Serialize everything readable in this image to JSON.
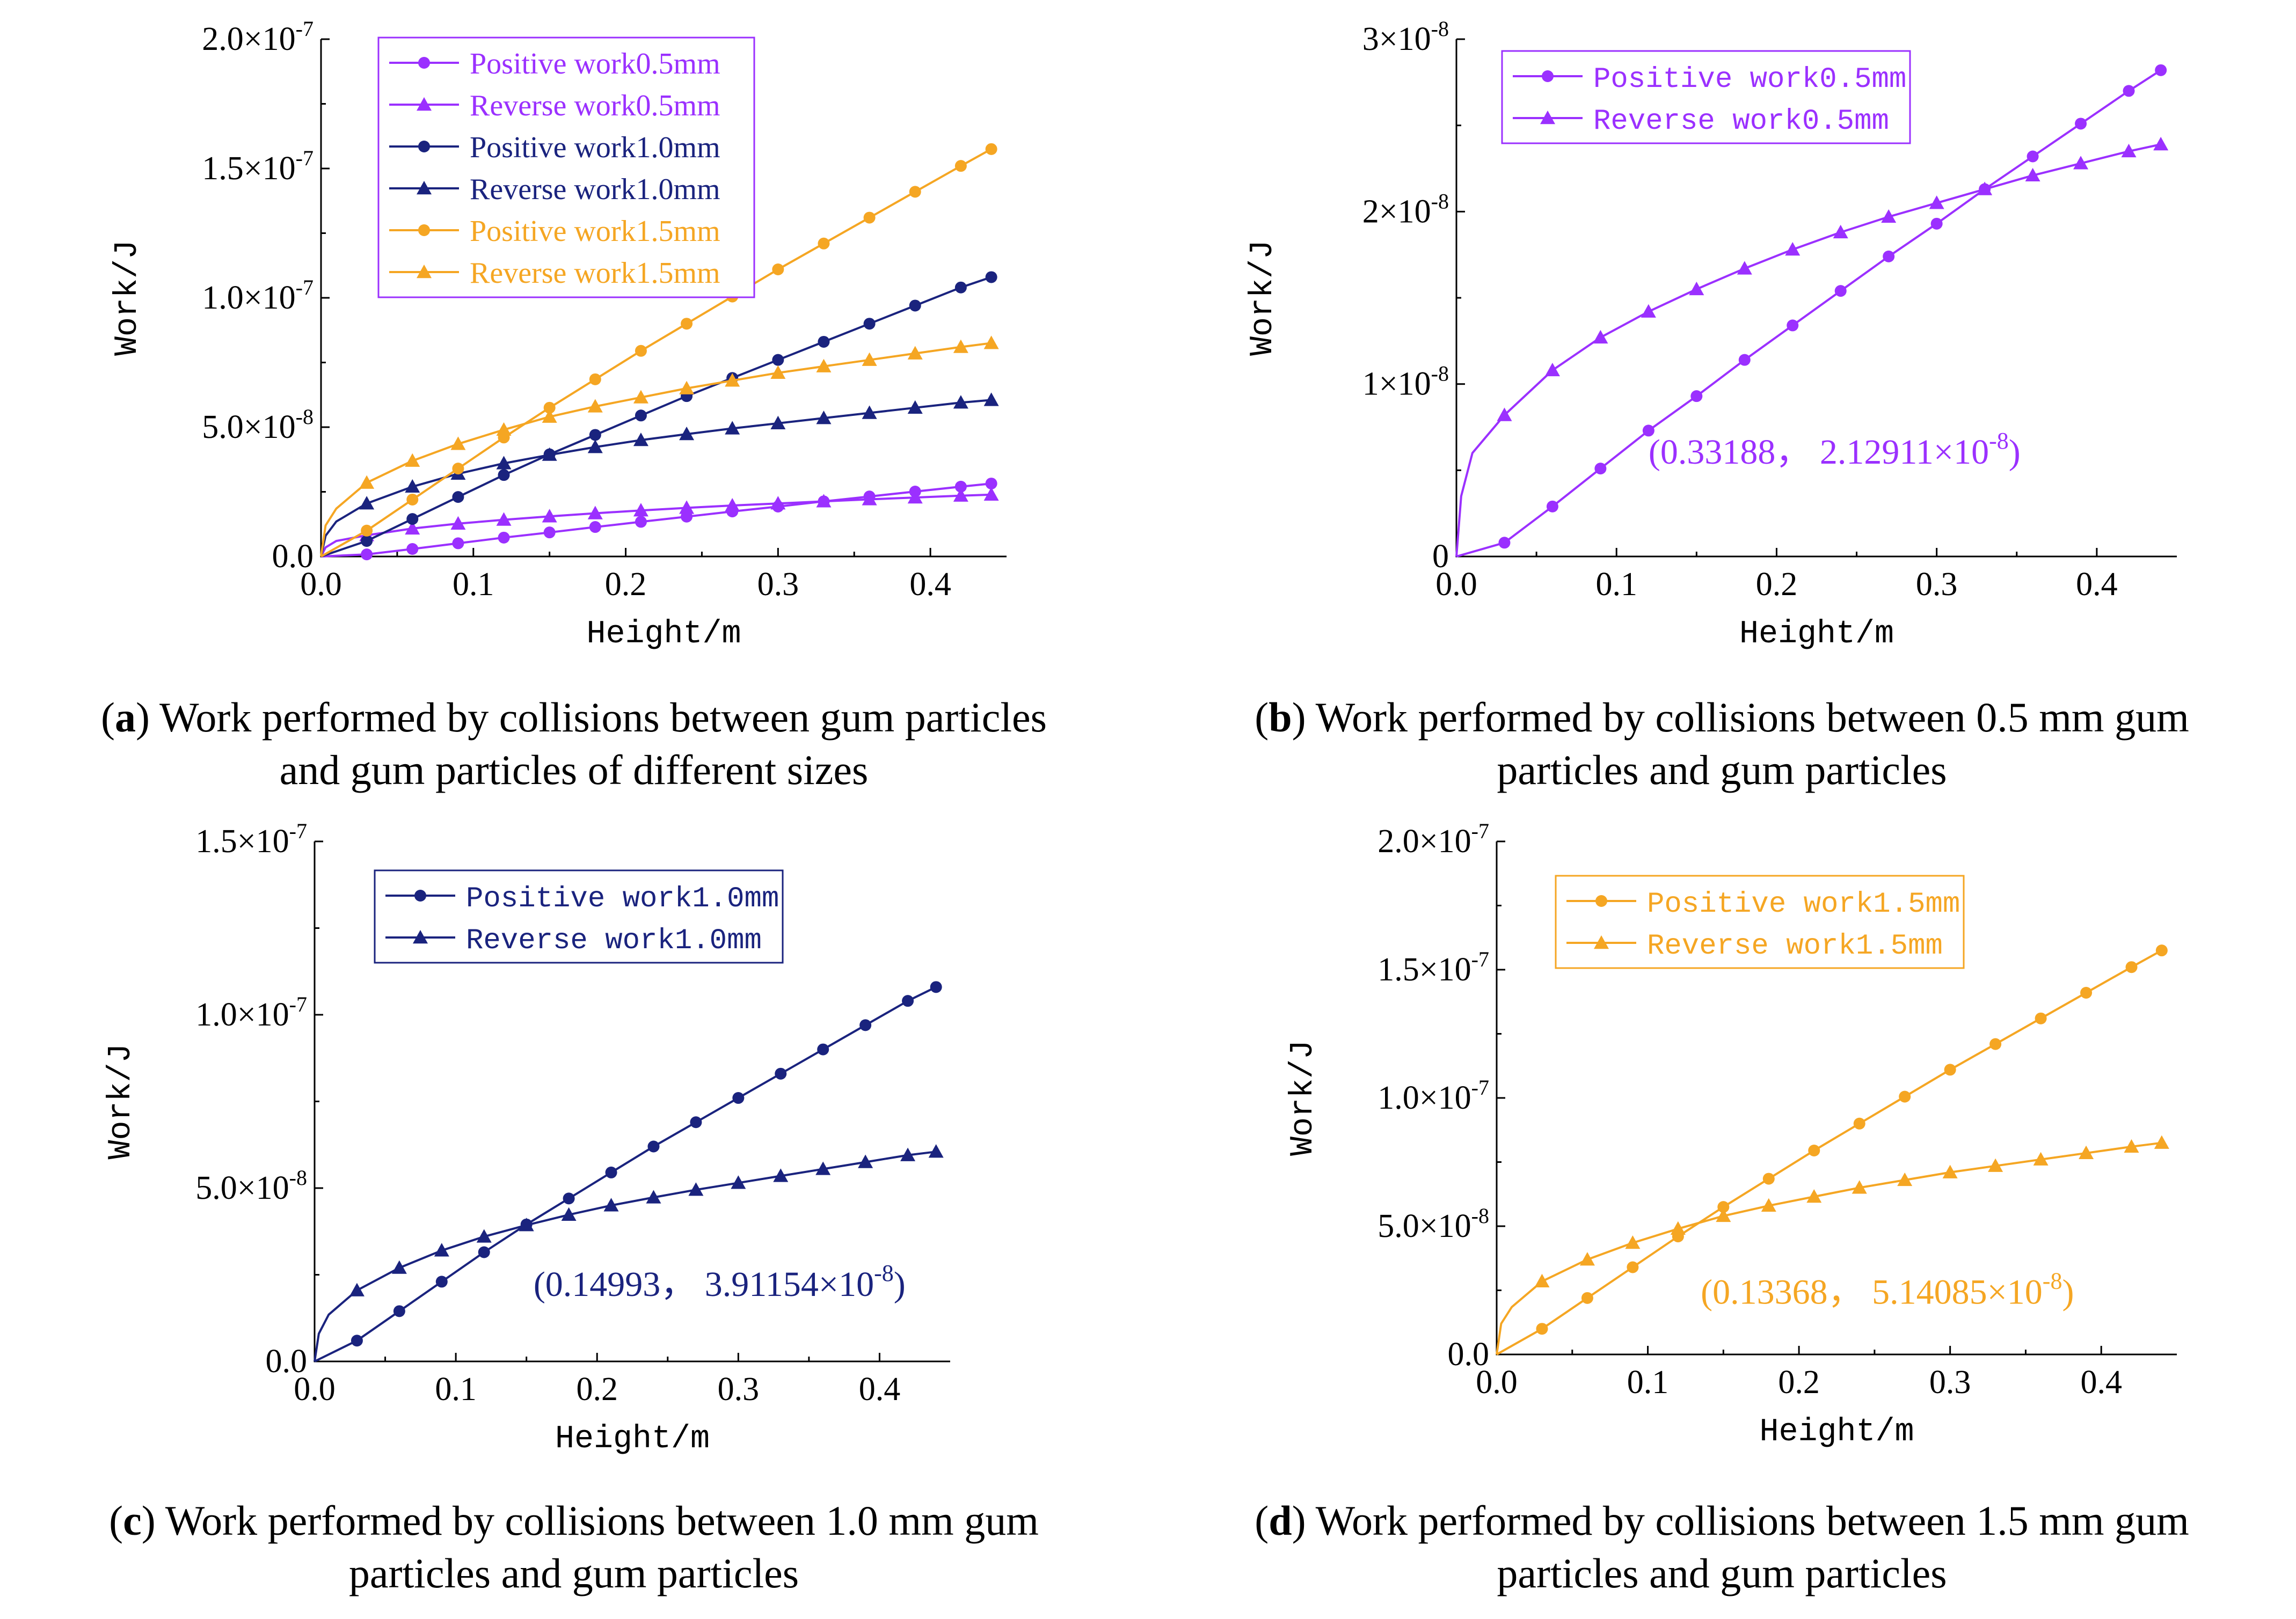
{
  "chart_data": [
    {
      "id": "a",
      "type": "line",
      "xlabel": "Height/m",
      "ylabel": "Work/J",
      "xlim": [
        0,
        0.45
      ],
      "ylim": [
        0,
        2e-07
      ],
      "x_ticks": [
        "0.0",
        "0.1",
        "0.2",
        "0.3",
        "0.4"
      ],
      "y_ticks": [
        {
          "mant": "0.0",
          "exp": ""
        },
        {
          "mant": "5.0×10",
          "exp": "-8"
        },
        {
          "mant": "1.0×10",
          "exp": "-7"
        },
        {
          "mant": "1.5×10",
          "exp": "-7"
        },
        {
          "mant": "2.0×10",
          "exp": "-7"
        }
      ],
      "legend": {
        "position": "top-left"
      },
      "annotation": null,
      "series": [
        {
          "name": "Positive work0.5mm",
          "color": "#9b30ff",
          "marker": "circle",
          "style": "positive",
          "x": [
            0,
            0.03,
            0.06,
            0.09,
            0.12,
            0.15,
            0.18,
            0.21,
            0.24,
            0.27,
            0.3,
            0.33,
            0.36,
            0.39,
            0.42,
            0.44
          ],
          "y": [
            0,
            8e-10,
            2.9e-09,
            5.1e-09,
            7.3e-09,
            9.3e-09,
            1.14e-08,
            1.34e-08,
            1.54e-08,
            1.74e-08,
            1.93e-08,
            2.13e-08,
            2.32e-08,
            2.51e-08,
            2.7e-08,
            2.82e-08
          ]
        },
        {
          "name": "Reverse work0.5mm",
          "color": "#9b30ff",
          "marker": "triangle",
          "style": "reverse",
          "x": [
            0,
            0.003,
            0.01,
            0.03,
            0.06,
            0.09,
            0.12,
            0.15,
            0.18,
            0.21,
            0.24,
            0.27,
            0.3,
            0.33,
            0.36,
            0.39,
            0.42,
            0.44
          ],
          "y": [
            0,
            3.5e-09,
            6e-09,
            8.2e-09,
            1.08e-08,
            1.27e-08,
            1.42e-08,
            1.55e-08,
            1.67e-08,
            1.78e-08,
            1.88e-08,
            1.97e-08,
            2.05e-08,
            2.13e-08,
            2.21e-08,
            2.28e-08,
            2.35e-08,
            2.39e-08
          ]
        },
        {
          "name": "Positive work1.0mm",
          "color": "#1a237e",
          "marker": "circle",
          "style": "positive",
          "x": [
            0,
            0.03,
            0.06,
            0.09,
            0.12,
            0.15,
            0.18,
            0.21,
            0.24,
            0.27,
            0.3,
            0.33,
            0.36,
            0.39,
            0.42,
            0.44
          ],
          "y": [
            0,
            6e-09,
            1.45e-08,
            2.3e-08,
            3.15e-08,
            3.95e-08,
            4.7e-08,
            5.45e-08,
            6.2e-08,
            6.9e-08,
            7.6e-08,
            8.3e-08,
            9e-08,
            9.7e-08,
            1.04e-07,
            1.08e-07
          ]
        },
        {
          "name": "Reverse work1.0mm",
          "color": "#1a237e",
          "marker": "triangle",
          "style": "reverse",
          "x": [
            0,
            0.003,
            0.01,
            0.03,
            0.06,
            0.09,
            0.12,
            0.15,
            0.18,
            0.21,
            0.24,
            0.27,
            0.3,
            0.33,
            0.36,
            0.39,
            0.42,
            0.44
          ],
          "y": [
            0,
            8e-09,
            1.35e-08,
            2.05e-08,
            2.7e-08,
            3.2e-08,
            3.6e-08,
            3.93e-08,
            4.23e-08,
            4.5e-08,
            4.73e-08,
            4.95e-08,
            5.15e-08,
            5.35e-08,
            5.55e-08,
            5.75e-08,
            5.95e-08,
            6.05e-08
          ]
        },
        {
          "name": "Positive work1.5mm",
          "color": "#f5a623",
          "marker": "circle",
          "style": "positive",
          "x": [
            0,
            0.03,
            0.06,
            0.09,
            0.12,
            0.15,
            0.18,
            0.21,
            0.24,
            0.27,
            0.3,
            0.33,
            0.36,
            0.39,
            0.42,
            0.44
          ],
          "y": [
            0,
            1e-08,
            2.2e-08,
            3.4e-08,
            4.6e-08,
            5.75e-08,
            6.85e-08,
            7.95e-08,
            9e-08,
            1.005e-07,
            1.11e-07,
            1.21e-07,
            1.31e-07,
            1.41e-07,
            1.51e-07,
            1.575e-07
          ]
        },
        {
          "name": "Reverse work1.5mm",
          "color": "#f5a623",
          "marker": "triangle",
          "style": "reverse",
          "x": [
            0,
            0.003,
            0.01,
            0.03,
            0.06,
            0.09,
            0.12,
            0.15,
            0.18,
            0.21,
            0.24,
            0.27,
            0.3,
            0.33,
            0.36,
            0.39,
            0.42,
            0.44
          ],
          "y": [
            0,
            1.2e-08,
            1.85e-08,
            2.85e-08,
            3.7e-08,
            4.35e-08,
            4.9e-08,
            5.4e-08,
            5.8e-08,
            6.15e-08,
            6.5e-08,
            6.8e-08,
            7.1e-08,
            7.35e-08,
            7.6e-08,
            7.85e-08,
            8.1e-08,
            8.25e-08
          ]
        }
      ]
    },
    {
      "id": "b",
      "type": "line",
      "xlabel": "Height/m",
      "ylabel": "Work/J",
      "xlim": [
        0,
        0.45
      ],
      "ylim": [
        0,
        3e-08
      ],
      "x_ticks": [
        "0.0",
        "0.1",
        "0.2",
        "0.3",
        "0.4"
      ],
      "y_ticks": [
        {
          "mant": "0",
          "exp": ""
        },
        {
          "mant": "1×10",
          "exp": "-8"
        },
        {
          "mant": "2×10",
          "exp": "-8"
        },
        {
          "mant": "3×10",
          "exp": "-8"
        }
      ],
      "legend": {
        "position": "top-left"
      },
      "annotation": {
        "text": "(0.33188， 2.12911×10",
        "exp": "-8",
        "close": ")",
        "at": [
          0.12,
          6e-09
        ]
      },
      "series": [
        {
          "name": "Positive work0.5mm",
          "color": "#9b30ff",
          "marker": "circle",
          "style": "positive",
          "x": [
            0,
            0.03,
            0.06,
            0.09,
            0.12,
            0.15,
            0.18,
            0.21,
            0.24,
            0.27,
            0.3,
            0.33,
            0.36,
            0.39,
            0.42,
            0.44
          ],
          "y": [
            0,
            8e-10,
            2.9e-09,
            5.1e-09,
            7.3e-09,
            9.3e-09,
            1.14e-08,
            1.34e-08,
            1.54e-08,
            1.74e-08,
            1.93e-08,
            2.13e-08,
            2.32e-08,
            2.51e-08,
            2.7e-08,
            2.82e-08
          ]
        },
        {
          "name": "Reverse work0.5mm",
          "color": "#9b30ff",
          "marker": "triangle",
          "style": "reverse",
          "x": [
            0,
            0.003,
            0.01,
            0.03,
            0.06,
            0.09,
            0.12,
            0.15,
            0.18,
            0.21,
            0.24,
            0.27,
            0.3,
            0.33,
            0.36,
            0.39,
            0.42,
            0.44
          ],
          "y": [
            0,
            3.5e-09,
            6e-09,
            8.2e-09,
            1.08e-08,
            1.27e-08,
            1.42e-08,
            1.55e-08,
            1.67e-08,
            1.78e-08,
            1.88e-08,
            1.97e-08,
            2.05e-08,
            2.13e-08,
            2.21e-08,
            2.28e-08,
            2.35e-08,
            2.39e-08
          ]
        }
      ]
    },
    {
      "id": "c",
      "type": "line",
      "xlabel": "Height/m",
      "ylabel": "Work/J",
      "xlim": [
        0,
        0.45
      ],
      "ylim": [
        0,
        1.5e-07
      ],
      "x_ticks": [
        "0.0",
        "0.1",
        "0.2",
        "0.3",
        "0.4"
      ],
      "y_ticks": [
        {
          "mant": "0.0",
          "exp": ""
        },
        {
          "mant": "5.0×10",
          "exp": "-8"
        },
        {
          "mant": "1.0×10",
          "exp": "-7"
        },
        {
          "mant": "1.5×10",
          "exp": "-7"
        }
      ],
      "legend": {
        "position": "top-left"
      },
      "annotation": {
        "text": "(0.14993， 3.91154×10",
        "exp": "-8",
        "close": ")",
        "at": [
          0.155,
          2.2e-08
        ]
      },
      "series": [
        {
          "name": "Positive work1.0mm",
          "color": "#1a237e",
          "marker": "circle",
          "style": "positive",
          "x": [
            0,
            0.03,
            0.06,
            0.09,
            0.12,
            0.15,
            0.18,
            0.21,
            0.24,
            0.27,
            0.3,
            0.33,
            0.36,
            0.39,
            0.42,
            0.44
          ],
          "y": [
            0,
            6e-09,
            1.45e-08,
            2.3e-08,
            3.15e-08,
            3.95e-08,
            4.7e-08,
            5.45e-08,
            6.2e-08,
            6.9e-08,
            7.6e-08,
            8.3e-08,
            9e-08,
            9.7e-08,
            1.04e-07,
            1.08e-07
          ]
        },
        {
          "name": "Reverse work1.0mm",
          "color": "#1a237e",
          "marker": "triangle",
          "style": "reverse",
          "x": [
            0,
            0.003,
            0.01,
            0.03,
            0.06,
            0.09,
            0.12,
            0.15,
            0.18,
            0.21,
            0.24,
            0.27,
            0.3,
            0.33,
            0.36,
            0.39,
            0.42,
            0.44
          ],
          "y": [
            0,
            8e-09,
            1.35e-08,
            2.05e-08,
            2.7e-08,
            3.2e-08,
            3.6e-08,
            3.93e-08,
            4.23e-08,
            4.5e-08,
            4.73e-08,
            4.95e-08,
            5.15e-08,
            5.35e-08,
            5.55e-08,
            5.75e-08,
            5.95e-08,
            6.05e-08
          ]
        }
      ]
    },
    {
      "id": "d",
      "type": "line",
      "xlabel": "Height/m",
      "ylabel": "Work/J",
      "xlim": [
        0,
        0.45
      ],
      "ylim": [
        0,
        2e-07
      ],
      "x_ticks": [
        "0.0",
        "0.1",
        "0.2",
        "0.3",
        "0.4"
      ],
      "y_ticks": [
        {
          "mant": "0.0",
          "exp": ""
        },
        {
          "mant": "5.0×10",
          "exp": "-8"
        },
        {
          "mant": "1.0×10",
          "exp": "-7"
        },
        {
          "mant": "1.5×10",
          "exp": "-7"
        },
        {
          "mant": "2.0×10",
          "exp": "-7"
        }
      ],
      "legend": {
        "position": "top-left"
      },
      "annotation": {
        "text": "(0.13368， 5.14085×10",
        "exp": "-8",
        "close": ")",
        "at": [
          0.135,
          2.4e-08
        ]
      },
      "series": [
        {
          "name": "Positive work1.5mm",
          "color": "#f5a623",
          "marker": "circle",
          "style": "positive",
          "x": [
            0,
            0.03,
            0.06,
            0.09,
            0.12,
            0.15,
            0.18,
            0.21,
            0.24,
            0.27,
            0.3,
            0.33,
            0.36,
            0.39,
            0.42,
            0.44
          ],
          "y": [
            0,
            1e-08,
            2.2e-08,
            3.4e-08,
            4.6e-08,
            5.75e-08,
            6.85e-08,
            7.95e-08,
            9e-08,
            1.005e-07,
            1.11e-07,
            1.21e-07,
            1.31e-07,
            1.41e-07,
            1.51e-07,
            1.575e-07
          ]
        },
        {
          "name": "Reverse work1.5mm",
          "color": "#f5a623",
          "marker": "triangle",
          "style": "reverse",
          "x": [
            0,
            0.003,
            0.01,
            0.03,
            0.06,
            0.09,
            0.12,
            0.15,
            0.18,
            0.21,
            0.24,
            0.27,
            0.3,
            0.33,
            0.36,
            0.39,
            0.42,
            0.44
          ],
          "y": [
            0,
            1.2e-08,
            1.85e-08,
            2.85e-08,
            3.7e-08,
            4.35e-08,
            4.9e-08,
            5.4e-08,
            5.8e-08,
            6.15e-08,
            6.5e-08,
            6.8e-08,
            7.1e-08,
            7.35e-08,
            7.6e-08,
            7.85e-08,
            8.1e-08,
            8.25e-08
          ]
        }
      ]
    }
  ],
  "captions": {
    "a": {
      "label": "a",
      "text": ") Work performed by collisions between gum particles",
      "line2": "and gum particles of different sizes"
    },
    "b": {
      "label": "b",
      "text": ") Work performed by collisions between 0.5 mm gum",
      "line2": "particles and gum particles"
    },
    "c": {
      "label": "c",
      "text": ") Work performed by collisions between 1.0 mm gum",
      "line2": "particles and gum particles"
    },
    "d": {
      "label": "d",
      "text": ") Work performed by collisions between 1.5 mm gum",
      "line2": "particles and gum particles"
    }
  }
}
